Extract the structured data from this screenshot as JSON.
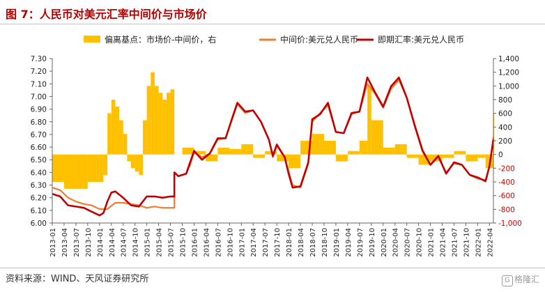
{
  "header": {
    "title": "图 7：人民币对美元汇率中间价与市场价"
  },
  "footer": {
    "source": "资料来源：WIND、天风证券研究所",
    "watermark": "格隆汇"
  },
  "colors": {
    "bar": "#ffc000",
    "mid": "#ed7d31",
    "spot": "#c00000",
    "right_axis": "#c00000"
  },
  "chart_data": {
    "type": "bar+line",
    "legend": {
      "placement": "top",
      "items": [
        {
          "label": "偏离基点：市场价-中间价，右",
          "kind": "bar",
          "color": "#ffc000"
        },
        {
          "label": "中间价:美元兑人民币",
          "kind": "line",
          "color": "#ed7d31"
        },
        {
          "label": "即期汇率:美元兑人民币",
          "kind": "line",
          "color": "#c00000"
        }
      ]
    },
    "x_tick_labels": [
      "2013-01",
      "2013-04",
      "2013-07",
      "2013-10",
      "2014-01",
      "2014-04",
      "2014-07",
      "2014-10",
      "2015-01",
      "2015-04",
      "2015-07",
      "2015-10",
      "2016-01",
      "2016-04",
      "2016-07",
      "2016-10",
      "2017-01",
      "2017-04",
      "2017-07",
      "2017-10",
      "2018-01",
      "2018-04",
      "2018-07",
      "2018-10",
      "2019-01",
      "2019-04",
      "2019-07",
      "2019-10",
      "2020-01",
      "2020-04",
      "2020-07",
      "2020-10",
      "2021-01",
      "2021-04",
      "2021-07",
      "2021-10",
      "2022-01",
      "2022-04"
    ],
    "y_left": {
      "min": 6.0,
      "max": 7.3,
      "step": 0.1,
      "tick_labels": [
        "6.00",
        "6.10",
        "6.20",
        "6.30",
        "6.40",
        "6.50",
        "6.60",
        "6.70",
        "6.80",
        "6.90",
        "7.00",
        "7.10",
        "7.20",
        "7.30"
      ]
    },
    "y_right": {
      "min": -1000,
      "max": 1400,
      "step": 200,
      "tick_labels": [
        "-1,000",
        "-800",
        "-600",
        "-400",
        "-200",
        "0",
        "200",
        "400",
        "600",
        "800",
        "1,000",
        "1,200",
        "1,400"
      ]
    },
    "grid": false,
    "series": [
      {
        "name": "中间价:美元兑人民币",
        "axis": "left",
        "points": [
          [
            "2013-01",
            6.28
          ],
          [
            "2013-03",
            6.26
          ],
          [
            "2013-05",
            6.2
          ],
          [
            "2013-07",
            6.17
          ],
          [
            "2013-09",
            6.15
          ],
          [
            "2013-11",
            6.14
          ],
          [
            "2014-01",
            6.11
          ],
          [
            "2014-03",
            6.11
          ],
          [
            "2014-05",
            6.16
          ],
          [
            "2014-07",
            6.16
          ],
          [
            "2014-09",
            6.15
          ],
          [
            "2014-11",
            6.14
          ],
          [
            "2015-01",
            6.12
          ],
          [
            "2015-03",
            6.13
          ],
          [
            "2015-05",
            6.12
          ],
          [
            "2015-07",
            6.12
          ],
          [
            "2015-08",
            6.12
          ],
          [
            "2015-08",
            6.4
          ],
          [
            "2015-09",
            6.37
          ],
          [
            "2015-11",
            6.39
          ],
          [
            "2015-12",
            6.46
          ],
          [
            "2016-01",
            6.56
          ],
          [
            "2016-03",
            6.52
          ],
          [
            "2016-05",
            6.55
          ],
          [
            "2016-07",
            6.66
          ],
          [
            "2016-09",
            6.67
          ],
          [
            "2016-11",
            6.85
          ],
          [
            "2016-12",
            6.94
          ],
          [
            "2017-02",
            6.87
          ],
          [
            "2017-04",
            6.89
          ],
          [
            "2017-06",
            6.8
          ],
          [
            "2017-08",
            6.66
          ],
          [
            "2017-09",
            6.52
          ],
          [
            "2017-10",
            6.61
          ],
          [
            "2017-12",
            6.52
          ],
          [
            "2018-01",
            6.41
          ],
          [
            "2018-02",
            6.3
          ],
          [
            "2018-04",
            6.28
          ],
          [
            "2018-06",
            6.47
          ],
          [
            "2018-07",
            6.8
          ],
          [
            "2018-09",
            6.87
          ],
          [
            "2018-11",
            6.93
          ],
          [
            "2019-01",
            6.72
          ],
          [
            "2019-03",
            6.71
          ],
          [
            "2019-05",
            6.86
          ],
          [
            "2019-07",
            6.88
          ],
          [
            "2019-09",
            7.1
          ],
          [
            "2019-11",
            7.02
          ],
          [
            "2020-01",
            6.91
          ],
          [
            "2020-03",
            7.06
          ],
          [
            "2020-05",
            7.13
          ],
          [
            "2020-07",
            6.99
          ],
          [
            "2020-09",
            6.78
          ],
          [
            "2020-11",
            6.58
          ],
          [
            "2021-01",
            6.46
          ],
          [
            "2021-03",
            6.52
          ],
          [
            "2021-05",
            6.4
          ],
          [
            "2021-07",
            6.47
          ],
          [
            "2021-09",
            6.46
          ],
          [
            "2021-11",
            6.38
          ],
          [
            "2022-01",
            6.35
          ],
          [
            "2022-03",
            6.34
          ],
          [
            "2022-04",
            6.45
          ],
          [
            "2022-05",
            6.68
          ]
        ]
      },
      {
        "name": "即期汇率:美元兑人民币",
        "axis": "left",
        "points": [
          [
            "2013-01",
            6.23
          ],
          [
            "2013-03",
            6.21
          ],
          [
            "2013-05",
            6.14
          ],
          [
            "2013-07",
            6.13
          ],
          [
            "2013-09",
            6.12
          ],
          [
            "2013-11",
            6.09
          ],
          [
            "2014-01",
            6.06
          ],
          [
            "2014-02",
            6.08
          ],
          [
            "2014-03",
            6.17
          ],
          [
            "2014-04",
            6.24
          ],
          [
            "2014-05",
            6.25
          ],
          [
            "2014-07",
            6.2
          ],
          [
            "2014-09",
            6.14
          ],
          [
            "2014-11",
            6.13
          ],
          [
            "2015-01",
            6.21
          ],
          [
            "2015-03",
            6.21
          ],
          [
            "2015-05",
            6.2
          ],
          [
            "2015-07",
            6.21
          ],
          [
            "2015-08",
            6.21
          ],
          [
            "2015-08",
            6.4
          ],
          [
            "2015-09",
            6.37
          ],
          [
            "2015-11",
            6.39
          ],
          [
            "2015-12",
            6.48
          ],
          [
            "2016-01",
            6.57
          ],
          [
            "2016-03",
            6.5
          ],
          [
            "2016-05",
            6.55
          ],
          [
            "2016-07",
            6.67
          ],
          [
            "2016-09",
            6.67
          ],
          [
            "2016-11",
            6.86
          ],
          [
            "2016-12",
            6.95
          ],
          [
            "2017-02",
            6.88
          ],
          [
            "2017-04",
            6.89
          ],
          [
            "2017-06",
            6.8
          ],
          [
            "2017-08",
            6.66
          ],
          [
            "2017-09",
            6.53
          ],
          [
            "2017-10",
            6.62
          ],
          [
            "2017-12",
            6.52
          ],
          [
            "2018-01",
            6.39
          ],
          [
            "2018-02",
            6.28
          ],
          [
            "2018-04",
            6.29
          ],
          [
            "2018-06",
            6.48
          ],
          [
            "2018-07",
            6.82
          ],
          [
            "2018-09",
            6.86
          ],
          [
            "2018-11",
            6.95
          ],
          [
            "2019-01",
            6.72
          ],
          [
            "2019-03",
            6.71
          ],
          [
            "2019-05",
            6.87
          ],
          [
            "2019-07",
            6.88
          ],
          [
            "2019-09",
            7.15
          ],
          [
            "2019-11",
            7.03
          ],
          [
            "2020-01",
            6.92
          ],
          [
            "2020-03",
            7.08
          ],
          [
            "2020-05",
            7.15
          ],
          [
            "2020-07",
            6.99
          ],
          [
            "2020-09",
            6.77
          ],
          [
            "2020-11",
            6.57
          ],
          [
            "2021-01",
            6.46
          ],
          [
            "2021-03",
            6.53
          ],
          [
            "2021-05",
            6.39
          ],
          [
            "2021-07",
            6.48
          ],
          [
            "2021-09",
            6.46
          ],
          [
            "2021-11",
            6.38
          ],
          [
            "2022-01",
            6.36
          ],
          [
            "2022-03",
            6.33
          ],
          [
            "2022-04",
            6.45
          ],
          [
            "2022-05",
            6.66
          ]
        ]
      },
      {
        "name": "偏离基点：市场价-中间价，右",
        "axis": "right",
        "type": "bar",
        "points": [
          [
            "2013-01",
            -400
          ],
          [
            "2013-04",
            -500
          ],
          [
            "2013-07",
            -500
          ],
          [
            "2013-10",
            -400
          ],
          [
            "2014-01",
            -400
          ],
          [
            "2014-02",
            -300
          ],
          [
            "2014-03",
            600
          ],
          [
            "2014-04",
            800
          ],
          [
            "2014-05",
            700
          ],
          [
            "2014-06",
            500
          ],
          [
            "2014-07",
            300
          ],
          [
            "2014-08",
            -100
          ],
          [
            "2014-09",
            -200
          ],
          [
            "2014-10",
            -250
          ],
          [
            "2014-11",
            -300
          ],
          [
            "2014-12",
            500
          ],
          [
            "2015-01",
            1000
          ],
          [
            "2015-02",
            1200
          ],
          [
            "2015-03",
            1000
          ],
          [
            "2015-04",
            900
          ],
          [
            "2015-05",
            800
          ],
          [
            "2015-06",
            900
          ],
          [
            "2015-07",
            950
          ],
          [
            "2015-08",
            0
          ],
          [
            "2015-10",
            100
          ],
          [
            "2016-01",
            50
          ],
          [
            "2016-04",
            -100
          ],
          [
            "2016-07",
            100
          ],
          [
            "2016-10",
            80
          ],
          [
            "2017-01",
            150
          ],
          [
            "2017-04",
            -50
          ],
          [
            "2017-07",
            50
          ],
          [
            "2017-10",
            -100
          ],
          [
            "2018-01",
            -200
          ],
          [
            "2018-04",
            200
          ],
          [
            "2018-07",
            300
          ],
          [
            "2018-10",
            200
          ],
          [
            "2019-01",
            -100
          ],
          [
            "2019-04",
            50
          ],
          [
            "2019-07",
            200
          ],
          [
            "2019-09",
            1000
          ],
          [
            "2019-10",
            500
          ],
          [
            "2020-01",
            100
          ],
          [
            "2020-04",
            150
          ],
          [
            "2020-07",
            -50
          ],
          [
            "2020-10",
            -150
          ],
          [
            "2021-01",
            -100
          ],
          [
            "2021-04",
            -50
          ],
          [
            "2021-07",
            50
          ],
          [
            "2021-10",
            -100
          ],
          [
            "2022-01",
            -50
          ],
          [
            "2022-03",
            -200
          ],
          [
            "2022-05",
            600
          ]
        ]
      }
    ]
  }
}
